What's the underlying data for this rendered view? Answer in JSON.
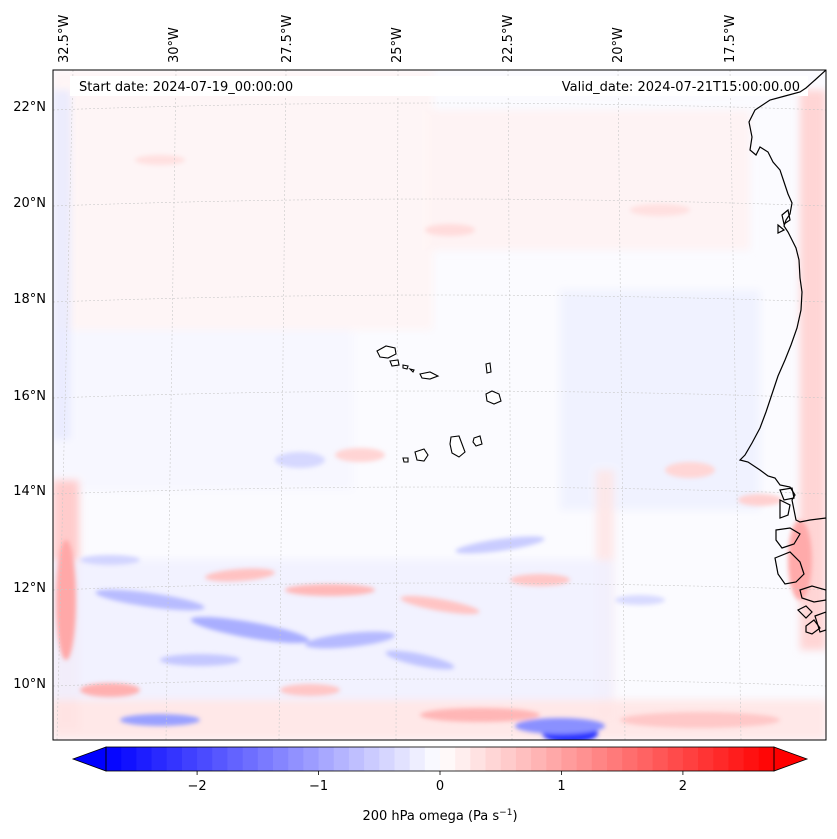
{
  "map": {
    "start_date_label": "Start date: 2024-07-19_00:00:00",
    "valid_date_label": "Valid_date: 2024-07-21T15:00:00.00",
    "longitude_labels": [
      "32.5°W",
      "30°W",
      "27.5°W",
      "25°W",
      "22.5°W",
      "20°W",
      "17.5°W"
    ],
    "latitude_labels": [
      "22°N",
      "20°N",
      "18°N",
      "16°N",
      "14°N",
      "12°N",
      "10°N"
    ]
  },
  "colorbar": {
    "ticks": [
      -2,
      -1,
      0,
      1,
      2
    ],
    "range": [
      -2.75,
      2.75
    ],
    "label_main": "200 hPa omega (Pa s",
    "label_exp": "−1",
    "label_close": ")",
    "low_color": "#0000ff",
    "mid_color": "#ffffff",
    "high_color": "#ff0000"
  }
}
